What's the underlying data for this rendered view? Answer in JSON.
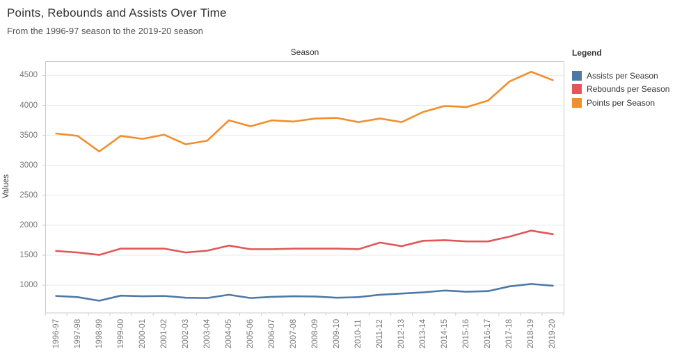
{
  "header": {
    "title": "Points, Rebounds and Assists Over Time",
    "subtitle": "From the 1996-97 season to the 2019-20 season"
  },
  "axes": {
    "x_caption": "Season",
    "y_label": "Values",
    "y_ticks": [
      1000,
      1500,
      2000,
      2500,
      3000,
      3500,
      4000,
      4500
    ]
  },
  "legend": {
    "title": "Legend"
  },
  "chart_data": {
    "type": "line",
    "title": "Points, Rebounds and Assists Over Time",
    "subtitle": "From the 1996-97 season to the 2019-20 season",
    "xlabel": "Season",
    "ylabel": "Values",
    "ylim": [
      540,
      4735
    ],
    "y_ticks": [
      1000,
      1500,
      2000,
      2500,
      3000,
      3500,
      4000,
      4500
    ],
    "grid": true,
    "legend_position": "right",
    "categories": [
      "1996-97",
      "1997-98",
      "1998-99",
      "1999-00",
      "2000-01",
      "2001-02",
      "2002-03",
      "2003-04",
      "2004-05",
      "2005-06",
      "2006-07",
      "2007-08",
      "2008-09",
      "2009-10",
      "2010-11",
      "2011-12",
      "2012-13",
      "2013-14",
      "2014-15",
      "2015-16",
      "2016-17",
      "2017-18",
      "2018-19",
      "2019-20"
    ],
    "series": [
      {
        "name": "Assists per Season",
        "color": "#4e79a7",
        "values": [
          820,
          800,
          740,
          825,
          815,
          820,
          790,
          785,
          840,
          785,
          805,
          815,
          810,
          790,
          800,
          840,
          860,
          880,
          910,
          890,
          900,
          980,
          1020,
          990
        ]
      },
      {
        "name": "Rebounds per Season",
        "color": "#e15759",
        "values": [
          1570,
          1545,
          1505,
          1610,
          1610,
          1610,
          1545,
          1575,
          1660,
          1600,
          1600,
          1610,
          1610,
          1610,
          1600,
          1710,
          1650,
          1740,
          1750,
          1730,
          1730,
          1810,
          1910,
          1850
        ]
      },
      {
        "name": "Points per Season",
        "color": "#f28e2b",
        "values": [
          3530,
          3490,
          3230,
          3490,
          3440,
          3510,
          3350,
          3410,
          3750,
          3650,
          3750,
          3730,
          3780,
          3790,
          3720,
          3780,
          3720,
          3890,
          3990,
          3970,
          4080,
          4400,
          4560,
          4420
        ]
      }
    ]
  }
}
